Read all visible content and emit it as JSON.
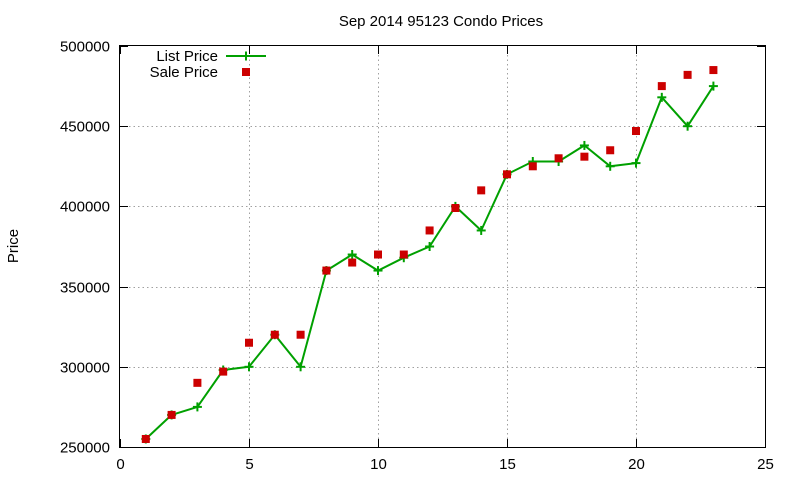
{
  "chart_data": {
    "type": "line",
    "title": "Sep 2014 95123 Condo Prices",
    "xlabel": "",
    "ylabel": "Price",
    "xlim": [
      0,
      25
    ],
    "ylim": [
      250000,
      500000
    ],
    "xticks": [
      0,
      5,
      10,
      15,
      20,
      25
    ],
    "yticks": [
      250000,
      300000,
      350000,
      400000,
      450000,
      500000
    ],
    "grid": true,
    "legend_position": "top-left",
    "series": [
      {
        "name": "List Price",
        "style": "line-with-plus-markers",
        "color": "#00a000",
        "x": [
          1,
          2,
          3,
          4,
          5,
          6,
          7,
          8,
          9,
          10,
          11,
          12,
          13,
          14,
          15,
          16,
          17,
          18,
          19,
          20,
          21,
          22,
          23
        ],
        "values": [
          255000,
          270000,
          275000,
          298000,
          300000,
          320000,
          300000,
          360000,
          370000,
          360000,
          368000,
          375000,
          400000,
          385000,
          420000,
          428000,
          428000,
          438000,
          425000,
          427000,
          468000,
          450000,
          475000
        ]
      },
      {
        "name": "Sale Price",
        "style": "square-markers",
        "color": "#cc0000",
        "x": [
          1,
          2,
          3,
          4,
          5,
          6,
          7,
          8,
          9,
          10,
          11,
          12,
          13,
          14,
          15,
          16,
          17,
          18,
          19,
          20,
          21,
          22,
          23
        ],
        "values": [
          255000,
          270000,
          290000,
          297000,
          315000,
          320000,
          320000,
          360000,
          365000,
          370000,
          370000,
          385000,
          399000,
          410000,
          420000,
          425000,
          430000,
          431000,
          435000,
          447000,
          475000,
          482000,
          485000
        ]
      }
    ]
  }
}
